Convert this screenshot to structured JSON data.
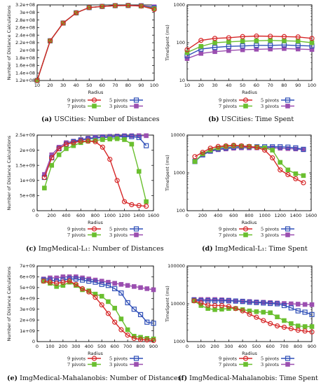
{
  "figure": {
    "captions": [
      {
        "tag": "(a)",
        "text": "USCities: Number of Distances"
      },
      {
        "tag": "(b)",
        "text": "USCities: Time Spent"
      },
      {
        "tag": "(c)",
        "text": "ImgMedical-L₁: Number of Distances"
      },
      {
        "tag": "(d)",
        "text": "ImgMedical-L₁: Time Spent"
      },
      {
        "tag": "(e)",
        "text": "ImgMedical-Mahalanobis: Number of Distances"
      },
      {
        "tag": "(f)",
        "text": "ImgMedical-Mahalanobis: Time Spent"
      }
    ]
  },
  "legend_entries": [
    "9 pivots",
    "7 pivots",
    "5 pivots",
    "3 pivots"
  ],
  "series_colors": {
    "9 pivots": "#d62728",
    "7 pivots": "#6abf2f",
    "5 pivots": "#3050b8",
    "3 pivots": "#9b4fb0"
  },
  "series_markers": {
    "9 pivots": "circle",
    "7 pivots": "filled-square",
    "5 pivots": "open-square",
    "3 pivots": "filled-square"
  },
  "chart_data": [
    {
      "type": "line",
      "ylabel": "Number of Distance Calculations",
      "xlabel": "Radius",
      "xlim": [
        10,
        100
      ],
      "xticks": [
        10,
        20,
        30,
        40,
        50,
        60,
        70,
        80,
        90,
        100
      ],
      "ylim": [
        120000000,
        320000000
      ],
      "yticks": [
        120000000,
        140000000,
        160000000,
        180000000,
        200000000,
        220000000,
        240000000,
        260000000,
        280000000,
        300000000,
        320000000
      ],
      "ytick_labels": [
        "1.2e+08",
        "1.4e+08",
        "1.6e+08",
        "1.8e+08",
        "2e+08",
        "2.2e+08",
        "2.4e+08",
        "2.6e+08",
        "2.8e+08",
        "3e+08",
        "3.2e+08"
      ],
      "yscale": "linear",
      "x": [
        10,
        20,
        30,
        40,
        50,
        60,
        70,
        80,
        90,
        100
      ],
      "series": [
        {
          "name": "9 pivots",
          "values": [
            120000000,
            225000000,
            272000000,
            299000000,
            313000000,
            316000000,
            318000000,
            318500000,
            317000000,
            308000000
          ]
        },
        {
          "name": "7 pivots",
          "values": [
            120000000,
            225000000,
            272000000,
            299000000,
            313000000,
            316000000,
            318000000,
            318500000,
            317000000,
            310000000
          ]
        },
        {
          "name": "5 pivots",
          "values": [
            120000000,
            225000000,
            272000000,
            299000000,
            313000000,
            316000000,
            318000000,
            318500000,
            317500000,
            312000000
          ]
        },
        {
          "name": "3 pivots",
          "values": [
            120000000,
            225000000,
            272000000,
            299000000,
            313000000,
            316000000,
            318000000,
            318500000,
            318000000,
            315000000
          ]
        }
      ]
    },
    {
      "type": "line",
      "ylabel": "TimeSpent (ms)",
      "xlabel": "Radius",
      "xlim": [
        10,
        100
      ],
      "xticks": [
        10,
        20,
        30,
        40,
        50,
        60,
        70,
        80,
        90,
        100
      ],
      "ylim": [
        10,
        1000
      ],
      "yticks": [
        10,
        100,
        1000
      ],
      "ytick_labels": [
        "10",
        "100",
        "1000"
      ],
      "yscale": "log",
      "x": [
        10,
        20,
        30,
        40,
        50,
        60,
        70,
        80,
        90,
        100
      ],
      "series": [
        {
          "name": "9 pivots",
          "values": [
            65,
            115,
            130,
            135,
            145,
            150,
            148,
            145,
            142,
            130
          ]
        },
        {
          "name": "7 pivots",
          "values": [
            55,
            80,
            100,
            105,
            110,
            112,
            115,
            112,
            110,
            100
          ]
        },
        {
          "name": "5 pivots",
          "values": [
            45,
            68,
            75,
            80,
            82,
            85,
            85,
            87,
            84,
            82
          ]
        },
        {
          "name": "3 pivots",
          "values": [
            38,
            52,
            58,
            62,
            65,
            67,
            68,
            70,
            68,
            66
          ]
        }
      ]
    },
    {
      "type": "line",
      "ylabel": "Number of Distance Calculations",
      "xlabel": "Radius",
      "xlim": [
        0,
        1600
      ],
      "xticks": [
        0,
        200,
        400,
        600,
        800,
        1000,
        1200,
        1400,
        1600
      ],
      "ylim": [
        0,
        2500000000
      ],
      "yticks": [
        0,
        500000000,
        1000000000,
        1500000000,
        2000000000,
        2500000000
      ],
      "ytick_labels": [
        "0",
        "5e+08",
        "1e+09",
        "1.5e+09",
        "2e+09",
        "2.5e+09"
      ],
      "yscale": "linear",
      "x": [
        100,
        200,
        300,
        400,
        500,
        600,
        700,
        800,
        900,
        1000,
        1100,
        1200,
        1300,
        1400,
        1500
      ],
      "series": [
        {
          "name": "9 pivots",
          "values": [
            1100000000,
            1750000000,
            2050000000,
            2200000000,
            2250000000,
            2300000000,
            2300000000,
            2280000000,
            2100000000,
            1700000000,
            1000000000,
            300000000,
            200000000,
            170000000,
            150000000
          ]
        },
        {
          "name": "7 pivots",
          "values": [
            750000000,
            1500000000,
            1850000000,
            2050000000,
            2150000000,
            2250000000,
            2300000000,
            2320000000,
            2350000000,
            2370000000,
            2380000000,
            2350000000,
            2200000000,
            1300000000,
            300000000
          ]
        },
        {
          "name": "5 pivots",
          "values": [
            1100000000,
            1750000000,
            2050000000,
            2200000000,
            2280000000,
            2330000000,
            2370000000,
            2400000000,
            2420000000,
            2430000000,
            2440000000,
            2450000000,
            2450000000,
            2420000000,
            2150000000
          ]
        },
        {
          "name": "3 pivots",
          "values": [
            1200000000,
            1850000000,
            2100000000,
            2250000000,
            2300000000,
            2350000000,
            2400000000,
            2430000000,
            2450000000,
            2460000000,
            2470000000,
            2480000000,
            2480000000,
            2480000000,
            2480000000
          ]
        }
      ]
    },
    {
      "type": "line",
      "ylabel": "TimeSpent (ms)",
      "xlabel": "Radius",
      "xlim": [
        0,
        1600
      ],
      "xticks": [
        0,
        200,
        400,
        600,
        800,
        1000,
        1200,
        1400,
        1600
      ],
      "ylim": [
        100,
        10000
      ],
      "yticks": [
        100,
        1000,
        10000
      ],
      "ytick_labels": [
        "100",
        "1000",
        "10000"
      ],
      "yscale": "log",
      "x": [
        100,
        200,
        300,
        400,
        500,
        600,
        700,
        800,
        900,
        1000,
        1100,
        1200,
        1300,
        1400,
        1500
      ],
      "series": [
        {
          "name": "9 pivots",
          "values": [
            2700,
            3500,
            4500,
            5000,
            5200,
            5400,
            5200,
            5000,
            4700,
            4000,
            2500,
            1200,
            900,
            700,
            550
          ]
        },
        {
          "name": "7 pivots",
          "values": [
            2000,
            3200,
            4000,
            4600,
            5000,
            5200,
            5100,
            5000,
            4800,
            4600,
            4000,
            1900,
            1200,
            950,
            850
          ]
        },
        {
          "name": "5 pivots",
          "values": [
            2000,
            3000,
            3800,
            4300,
            4600,
            4800,
            4900,
            4900,
            4900,
            4900,
            4900,
            4900,
            4800,
            4600,
            4200
          ]
        },
        {
          "name": "3 pivots",
          "values": [
            2100,
            3000,
            3700,
            4100,
            4300,
            4500,
            4600,
            4600,
            4600,
            4600,
            4600,
            4500,
            4400,
            4300,
            4100
          ]
        }
      ]
    },
    {
      "type": "line",
      "ylabel": "Number of Distance Calculations",
      "xlabel": "Radius",
      "xlim": [
        0,
        900
      ],
      "xticks": [
        0,
        100,
        200,
        300,
        400,
        500,
        600,
        700,
        800,
        900
      ],
      "ylim": [
        0,
        7000000000
      ],
      "yticks": [
        0,
        1000000000,
        2000000000,
        3000000000,
        4000000000,
        5000000000,
        6000000000,
        7000000000
      ],
      "ytick_labels": [
        "0",
        "1e+09",
        "2e+09",
        "3e+09",
        "4e+09",
        "5e+09",
        "6e+09",
        "7e+09"
      ],
      "yscale": "linear",
      "x": [
        50,
        100,
        150,
        200,
        250,
        300,
        350,
        400,
        450,
        500,
        550,
        600,
        650,
        700,
        750,
        800,
        850,
        900
      ],
      "series": [
        {
          "name": "9 pivots",
          "values": [
            5600000000,
            5500000000,
            5400000000,
            5500000000,
            5600000000,
            5300000000,
            4900000000,
            4600000000,
            4100000000,
            3400000000,
            2600000000,
            1800000000,
            1100000000,
            600000000,
            300000000,
            200000000,
            150000000,
            100000000
          ]
        },
        {
          "name": "7 pivots",
          "values": [
            5600000000,
            5400000000,
            5100000000,
            5200000000,
            5500000000,
            5200000000,
            4800000000,
            4700000000,
            4400000000,
            4200000000,
            3700000000,
            3100000000,
            2100000000,
            1100000000,
            500000000,
            400000000,
            300000000,
            250000000
          ]
        },
        {
          "name": "5 pivots",
          "values": [
            5700000000,
            5700000000,
            5600000000,
            5700000000,
            5800000000,
            5800000000,
            5700000000,
            5600000000,
            5500000000,
            5300000000,
            5200000000,
            4900000000,
            4500000000,
            3600000000,
            3000000000,
            2500000000,
            1800000000,
            1700000000
          ]
        },
        {
          "name": "3 pivots",
          "values": [
            5800000000,
            5900000000,
            5900000000,
            6000000000,
            6000000000,
            6000000000,
            5900000000,
            5800000000,
            5700000000,
            5600000000,
            5500000000,
            5400000000,
            5300000000,
            5200000000,
            5100000000,
            5000000000,
            4900000000,
            4800000000
          ]
        }
      ]
    },
    {
      "type": "line",
      "ylabel": "TimeSpent (ms)",
      "xlabel": "Radius",
      "xlim": [
        0,
        900
      ],
      "xticks": [
        0,
        100,
        200,
        300,
        400,
        500,
        600,
        700,
        800,
        900
      ],
      "ylim": [
        1000,
        100000
      ],
      "yticks": [
        1000,
        10000,
        100000
      ],
      "ytick_labels": [
        "1000",
        "10000",
        "100000"
      ],
      "yscale": "log",
      "x": [
        50,
        100,
        150,
        200,
        250,
        300,
        350,
        400,
        450,
        500,
        550,
        600,
        650,
        700,
        750,
        800,
        850,
        900
      ],
      "series": [
        {
          "name": "9 pivots",
          "values": [
            12000,
            10500,
            9200,
            9000,
            9000,
            8500,
            7500,
            6500,
            5300,
            4400,
            3600,
            3000,
            2600,
            2400,
            2200,
            2000,
            1900,
            1800
          ]
        },
        {
          "name": "7 pivots",
          "values": [
            12000,
            9000,
            7500,
            7000,
            7200,
            7500,
            7500,
            7000,
            6500,
            6200,
            6000,
            5800,
            4500,
            3600,
            3000,
            2600,
            2500,
            2500
          ]
        },
        {
          "name": "5 pivots",
          "values": [
            12500,
            12000,
            12000,
            12000,
            12000,
            12000,
            11800,
            11500,
            11000,
            10800,
            10500,
            10200,
            10000,
            9000,
            7800,
            6500,
            6000,
            5200
          ]
        },
        {
          "name": "3 pivots",
          "values": [
            13000,
            13000,
            13000,
            13000,
            12800,
            12500,
            12000,
            11800,
            11500,
            11200,
            11000,
            10800,
            10500,
            10200,
            10000,
            9800,
            9600,
            9500
          ]
        }
      ]
    }
  ]
}
